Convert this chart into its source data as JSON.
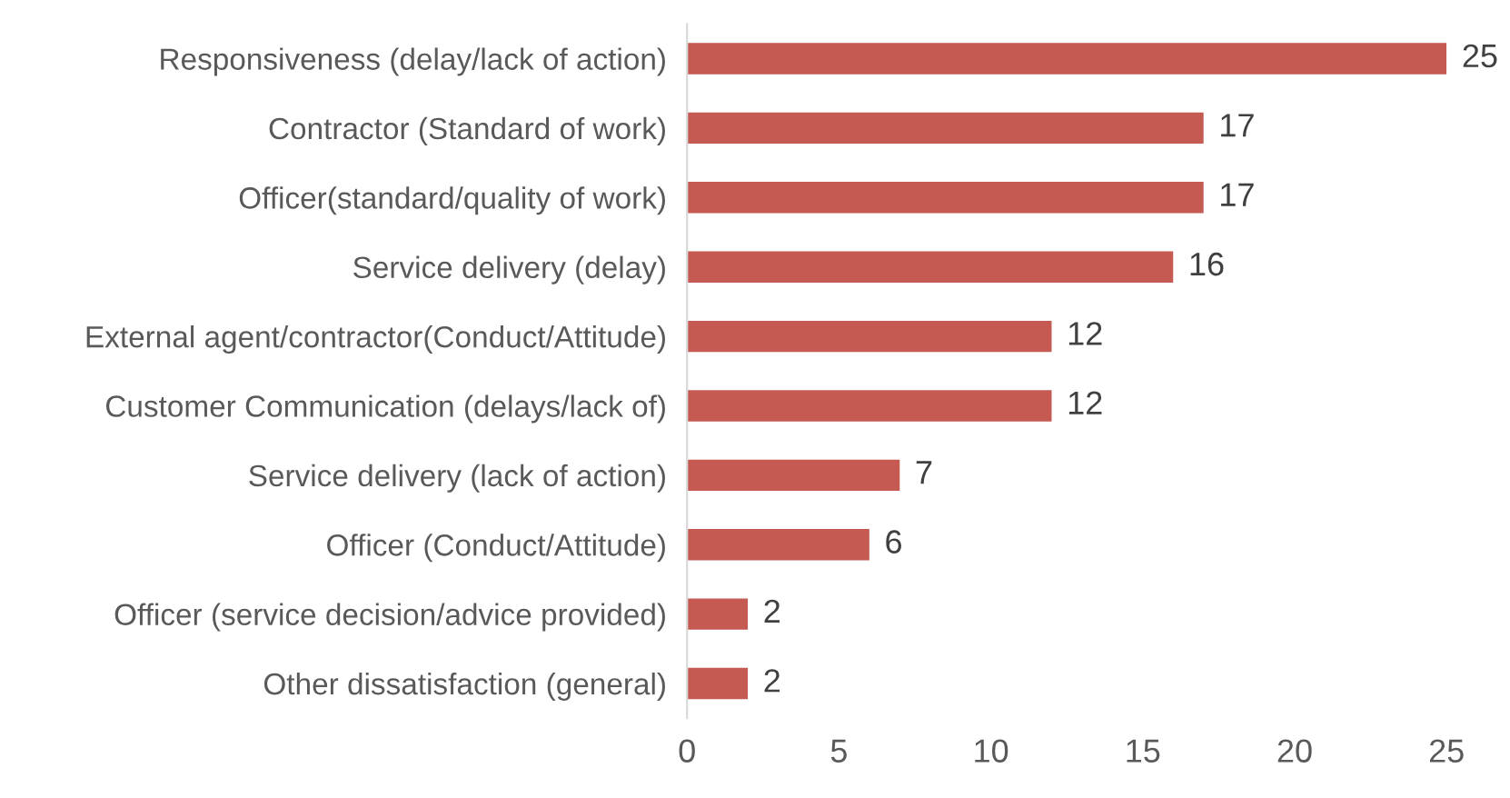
{
  "chart_data": {
    "type": "bar",
    "orientation": "horizontal",
    "categories": [
      "Responsiveness (delay/lack of action)",
      "Contractor (Standard of work)",
      "Officer(standard/quality of work)",
      "Service delivery (delay)",
      "External agent/contractor(Conduct/Attitude)",
      "Customer Communication (delays/lack of)",
      "Service delivery (lack of action)",
      "Officer (Conduct/Attitude)",
      "Officer (service decision/advice provided)",
      "Other dissatisfaction (general)"
    ],
    "values": [
      25,
      17,
      17,
      16,
      12,
      12,
      7,
      6,
      2,
      2
    ],
    "color": "#c55a52",
    "xlim": [
      0,
      25
    ],
    "xticks": [
      0,
      5,
      10,
      15,
      20,
      25
    ],
    "data_labels": true,
    "grid": false,
    "legend": false
  }
}
